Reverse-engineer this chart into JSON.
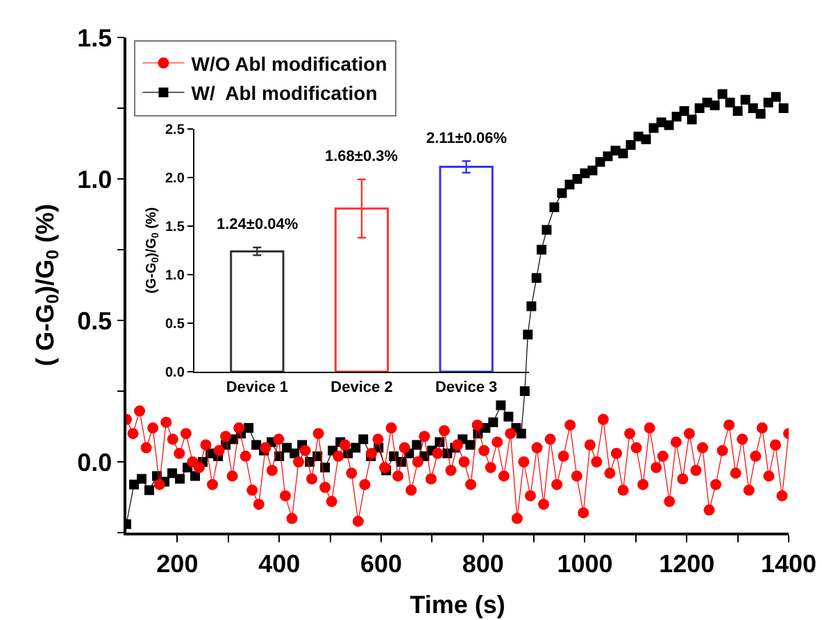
{
  "chart_data": [
    {
      "type": "line",
      "xlabel": "Time (s)",
      "ylabel": "( G-G$_{0}$)/G$_{0}$ (%)",
      "xlim": [
        100,
        1400
      ],
      "ylim": [
        -0.25,
        1.5
      ],
      "xticks": [
        200,
        {
          "value": 300,
          "label": null
        },
        400,
        {
          "value": 500,
          "label": null
        },
        600,
        {
          "value": 700,
          "label": null
        },
        800,
        {
          "value": 900,
          "label": null
        },
        1000,
        {
          "value": 1100,
          "label": null
        },
        1200,
        {
          "value": 1300,
          "label": null
        },
        1400
      ],
      "yticks": [
        {
          "value": -0.25,
          "label": null
        },
        {
          "value": 0,
          "label": "0.0"
        },
        {
          "value": 0.25,
          "label": null
        },
        {
          "value": 0.5,
          "label": "0.5"
        },
        {
          "value": 0.75,
          "label": null
        },
        {
          "value": 1,
          "label": "1.0"
        },
        {
          "value": 1.25,
          "label": null
        },
        {
          "value": 1.5,
          "label": "1.5"
        }
      ],
      "grid": false,
      "legend": "top left",
      "line_style": "solid",
      "series": [
        {
          "name": "W/O Abl modification",
          "color": "#ff0000",
          "marker": "circle",
          "x": [
            100,
            113,
            126,
            139,
            152,
            165,
            178,
            191,
            204,
            217,
            230,
            243,
            256,
            269,
            282,
            295,
            308,
            321,
            334,
            347,
            360,
            373,
            386,
            399,
            412,
            425,
            438,
            451,
            464,
            477,
            490,
            503,
            516,
            529,
            542,
            555,
            568,
            581,
            594,
            607,
            620,
            633,
            646,
            659,
            672,
            685,
            698,
            711,
            724,
            737,
            750,
            763,
            776,
            789,
            802,
            815,
            828,
            841,
            854,
            867,
            880,
            893,
            906,
            919,
            932,
            945,
            958,
            971,
            984,
            997,
            1010,
            1023,
            1036,
            1049,
            1062,
            1075,
            1088,
            1101,
            1114,
            1127,
            1140,
            1153,
            1166,
            1179,
            1192,
            1205,
            1218,
            1231,
            1244,
            1257,
            1270,
            1283,
            1296,
            1309,
            1322,
            1335,
            1348,
            1361,
            1374,
            1387,
            1400
          ],
          "values": [
            0.15,
            0.1,
            0.18,
            0.05,
            0.12,
            -0.08,
            0.14,
            0.08,
            0.03,
            0.1,
            0.0,
            -0.02,
            0.06,
            -0.08,
            0.04,
            0.09,
            -0.05,
            0.12,
            0.02,
            -0.1,
            -0.15,
            0.05,
            -0.03,
            0.08,
            -0.12,
            -0.2,
            0.0,
            0.04,
            -0.06,
            0.1,
            -0.09,
            -0.14,
            0.02,
            0.06,
            -0.04,
            -0.21,
            -0.08,
            0.03,
            0.08,
            -0.02,
            0.12,
            -0.05,
            0.05,
            -0.1,
            0.0,
            0.09,
            -0.06,
            0.03,
            0.11,
            -0.03,
            0.06,
            0.0,
            -0.08,
            0.13,
            0.04,
            -0.02,
            0.07,
            -0.05,
            0.1,
            -0.2,
            0.0,
            -0.12,
            0.05,
            -0.15,
            0.08,
            -0.08,
            0.02,
            0.13,
            -0.05,
            -0.18,
            0.06,
            0.0,
            0.15,
            -0.04,
            0.03,
            -0.1,
            0.1,
            0.05,
            -0.08,
            0.12,
            -0.02,
            0.02,
            -0.14,
            0.07,
            -0.06,
            0.1,
            -0.03,
            0.05,
            -0.17,
            -0.08,
            0.04,
            0.13,
            -0.04,
            0.08,
            -0.1,
            0.02,
            0.12,
            -0.05,
            0.06,
            -0.12,
            0.1
          ]
        },
        {
          "name": "W/  Abl modification",
          "color": "#000000",
          "marker": "square",
          "x": [
            100,
            115,
            130,
            145,
            160,
            175,
            190,
            205,
            220,
            235,
            250,
            265,
            280,
            295,
            310,
            325,
            340,
            355,
            370,
            385,
            400,
            415,
            430,
            445,
            460,
            475,
            490,
            505,
            520,
            535,
            550,
            565,
            580,
            595,
            610,
            625,
            640,
            655,
            670,
            685,
            700,
            715,
            730,
            745,
            760,
            775,
            790,
            805,
            820,
            835,
            850,
            865,
            875,
            882,
            888,
            895,
            905,
            915,
            925,
            940,
            955,
            970,
            985,
            1000,
            1015,
            1030,
            1045,
            1060,
            1075,
            1090,
            1105,
            1120,
            1135,
            1150,
            1165,
            1180,
            1195,
            1210,
            1225,
            1240,
            1255,
            1270,
            1285,
            1300,
            1315,
            1330,
            1345,
            1360,
            1375,
            1390
          ],
          "values": [
            -0.22,
            -0.08,
            -0.06,
            -0.1,
            -0.05,
            -0.07,
            -0.04,
            -0.06,
            -0.02,
            -0.05,
            0.0,
            0.03,
            0.02,
            0.06,
            0.08,
            0.1,
            0.12,
            0.06,
            0.04,
            0.07,
            0.02,
            0.05,
            0.03,
            0.06,
            0.0,
            0.02,
            -0.02,
            0.04,
            0.07,
            0.03,
            0.05,
            0.08,
            0.02,
            0.05,
            -0.03,
            0.02,
            0.0,
            0.03,
            0.06,
            0.02,
            0.04,
            0.07,
            0.03,
            0.05,
            0.08,
            0.06,
            0.1,
            0.12,
            0.14,
            0.2,
            0.16,
            0.12,
            0.1,
            0.25,
            0.45,
            0.55,
            0.65,
            0.75,
            0.82,
            0.9,
            0.95,
            0.98,
            1.0,
            1.02,
            1.03,
            1.06,
            1.08,
            1.1,
            1.09,
            1.12,
            1.15,
            1.14,
            1.18,
            1.2,
            1.19,
            1.22,
            1.24,
            1.21,
            1.25,
            1.27,
            1.26,
            1.3,
            1.27,
            1.24,
            1.28,
            1.25,
            1.23,
            1.27,
            1.29,
            1.25
          ]
        }
      ]
    },
    {
      "type": "bar",
      "ylabel": "(G-G$_{0}$)/G$_{0}$ (%)",
      "categories": [
        "Device 1",
        "Device 2",
        "Device 3"
      ],
      "values": [
        1.24,
        1.68,
        2.11
      ],
      "colors": [
        "#333333",
        "#ff3333",
        "#3333ff"
      ],
      "errors": [
        0.04,
        0.3,
        0.06
      ],
      "value_labels": [
        "1.24±0.04%",
        "1.68±0.3%",
        "2.11±0.06%"
      ],
      "ylim": [
        0,
        2.5
      ],
      "yticks": [
        {
          "value": 0,
          "label": "0.0"
        },
        {
          "value": 0.5,
          "label": "0.5"
        },
        {
          "value": 1,
          "label": "1.0"
        },
        {
          "value": 1.5,
          "label": "1.5"
        },
        {
          "value": 2,
          "label": "2.0"
        },
        {
          "value": 2.5,
          "label": "2.5"
        }
      ],
      "grid": false
    }
  ]
}
